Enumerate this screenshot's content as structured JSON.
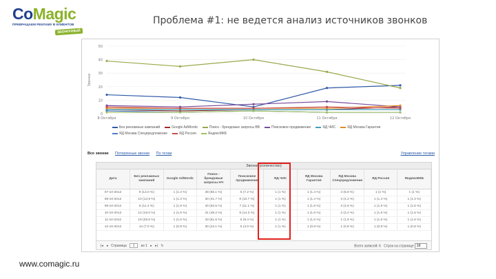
{
  "logo": {
    "text_part1": "Co",
    "text_part2": "Magic",
    "tagline": "ПРЕВРАЩАЕМ РЕКЛАМУ В КЛИЕНТОВ",
    "badge": "ЗВОНОЧНЫЙ",
    "colors": {
      "primary": "#1f3f8c",
      "accent": "#8ab22a"
    }
  },
  "slide_title": "Проблема #1: не ведется анализ источников звонков",
  "footer_url": "www.comagic.ru",
  "chart_data": {
    "type": "line",
    "ylabel": "Звонки",
    "ylim": [
      0,
      50
    ],
    "y_ticks": [
      "50",
      "40",
      "30",
      "20",
      "10",
      "0"
    ],
    "categories": [
      "8 Октября",
      "9 Октября",
      "10 Октября",
      "11 Октября",
      "12 Октября"
    ],
    "series": [
      {
        "name": "Без рекламных кампаний",
        "color": "#2f5aa8",
        "values": [
          14,
          12,
          5,
          19,
          21
        ]
      },
      {
        "name": "Google AdWords",
        "color": "#9a2b2b",
        "values": [
          3,
          2,
          3,
          3,
          5
        ]
      },
      {
        "name": "Поиск - брендовые запросы ВВ",
        "color": "#98a848",
        "values": [
          39,
          35,
          40,
          31,
          19
        ]
      },
      {
        "name": "Поисковое продвижение",
        "color": "#7a4a9a",
        "values": [
          6,
          5,
          7,
          9,
          5
        ]
      },
      {
        "name": "ЯД ЧИС",
        "color": "#3aa0b8",
        "values": [
          3,
          3,
          3,
          3,
          3
        ]
      },
      {
        "name": "ЯД Москва Гарантия",
        "color": "#e08a2a",
        "values": [
          4,
          4,
          4,
          4,
          6
        ]
      },
      {
        "name": "ЯД Москва Спецпредложение",
        "color": "#4a78c8",
        "values": [
          2,
          1,
          2,
          1,
          1
        ]
      },
      {
        "name": "ЯД Россия",
        "color": "#c84a4a",
        "values": [
          5,
          4,
          4,
          5,
          4
        ]
      },
      {
        "name": "ЯндексМКБ",
        "color": "#a0c060",
        "values": [
          1,
          1,
          2,
          1,
          1
        ]
      }
    ]
  },
  "tabs": {
    "items": [
      "Все звонки",
      "Потерянные звонки",
      "По тегам"
    ],
    "right": "Управление тегами"
  },
  "table": {
    "title": "Звонки (количество)",
    "headers": [
      "Дата",
      "Без рекламных кампаний",
      "Google AdWords",
      "Поиск - брендовые запросы НЧ",
      "Поисковое продвижение",
      "ЯД ЧИС",
      "ЯД Москва Гарантия",
      "ЯД Москва Спецпредложение",
      "ЯД Россия",
      "ЯндексМКБ"
    ],
    "rows": [
      [
        "07-10-2012",
        "9 (13.0 %)",
        "1 (1.4 %)",
        "38 (55.1 %)",
        "5 (7.2 %)",
        "1 (1 %)",
        "1 (1.4 %)",
        "4 (5.8 %)",
        "1 (1 %)",
        "1 (1 %)"
      ],
      [
        "08-10-2012",
        "10 (13.9 %)",
        "1 (1.3 %)",
        "30 (41.7 %)",
        "8 (10.7 %)",
        "1 (1 %)",
        "1 (1.4 %)",
        "3 (4.2 %)",
        "1 (1.4 %)",
        "1 (1.3 %)"
      ],
      [
        "09-10-2012",
        "6 (11.4 %)",
        "1 (1.6 %)",
        "40 (63.5 %)",
        "7 (11.1 %)",
        "1 (1 %)",
        "1 (1.6 %)",
        "3 (4.8 %)",
        "1 (1.6 %)",
        "1 (1.6 %)"
      ],
      [
        "10-10-2012",
        "12 (19.0 %)",
        "1 (1.6 %)",
        "31 (49.2 %)",
        "9 (14.3 %)",
        "1 (1 %)",
        "1 (1.6 %)",
        "2 (3.2 %)",
        "1 (1.6 %)",
        "1 (1.6 %)"
      ],
      [
        "11-10-2012",
        "19 (29.5 %)",
        "1 (1.6 %)",
        "33 (51.6 %)",
        "6 (9.4 %)",
        "1 (1 %)",
        "1 (1.6 %)",
        "1 (1.6 %)",
        "1 (1.6 %)",
        "1 (1.6 %)"
      ],
      [
        "12-10-2012",
        "14 (7.0 %)",
        "1 (0.8 %)",
        "30 (24.1 %)",
        "5 (4.0 %)",
        "1 (1 %)",
        "1 (0.8 %)",
        "1 (0.8 %)",
        "1 (0.8 %)",
        "1 (0.8 %)"
      ]
    ]
  },
  "pager": {
    "page_label": "Страница",
    "page_value": "1",
    "of_label": "из 1",
    "records": "Всего записей: 6",
    "per_page_label": "Строк на странице",
    "per_page_value": "10"
  },
  "highlight_color": "#e0201b"
}
